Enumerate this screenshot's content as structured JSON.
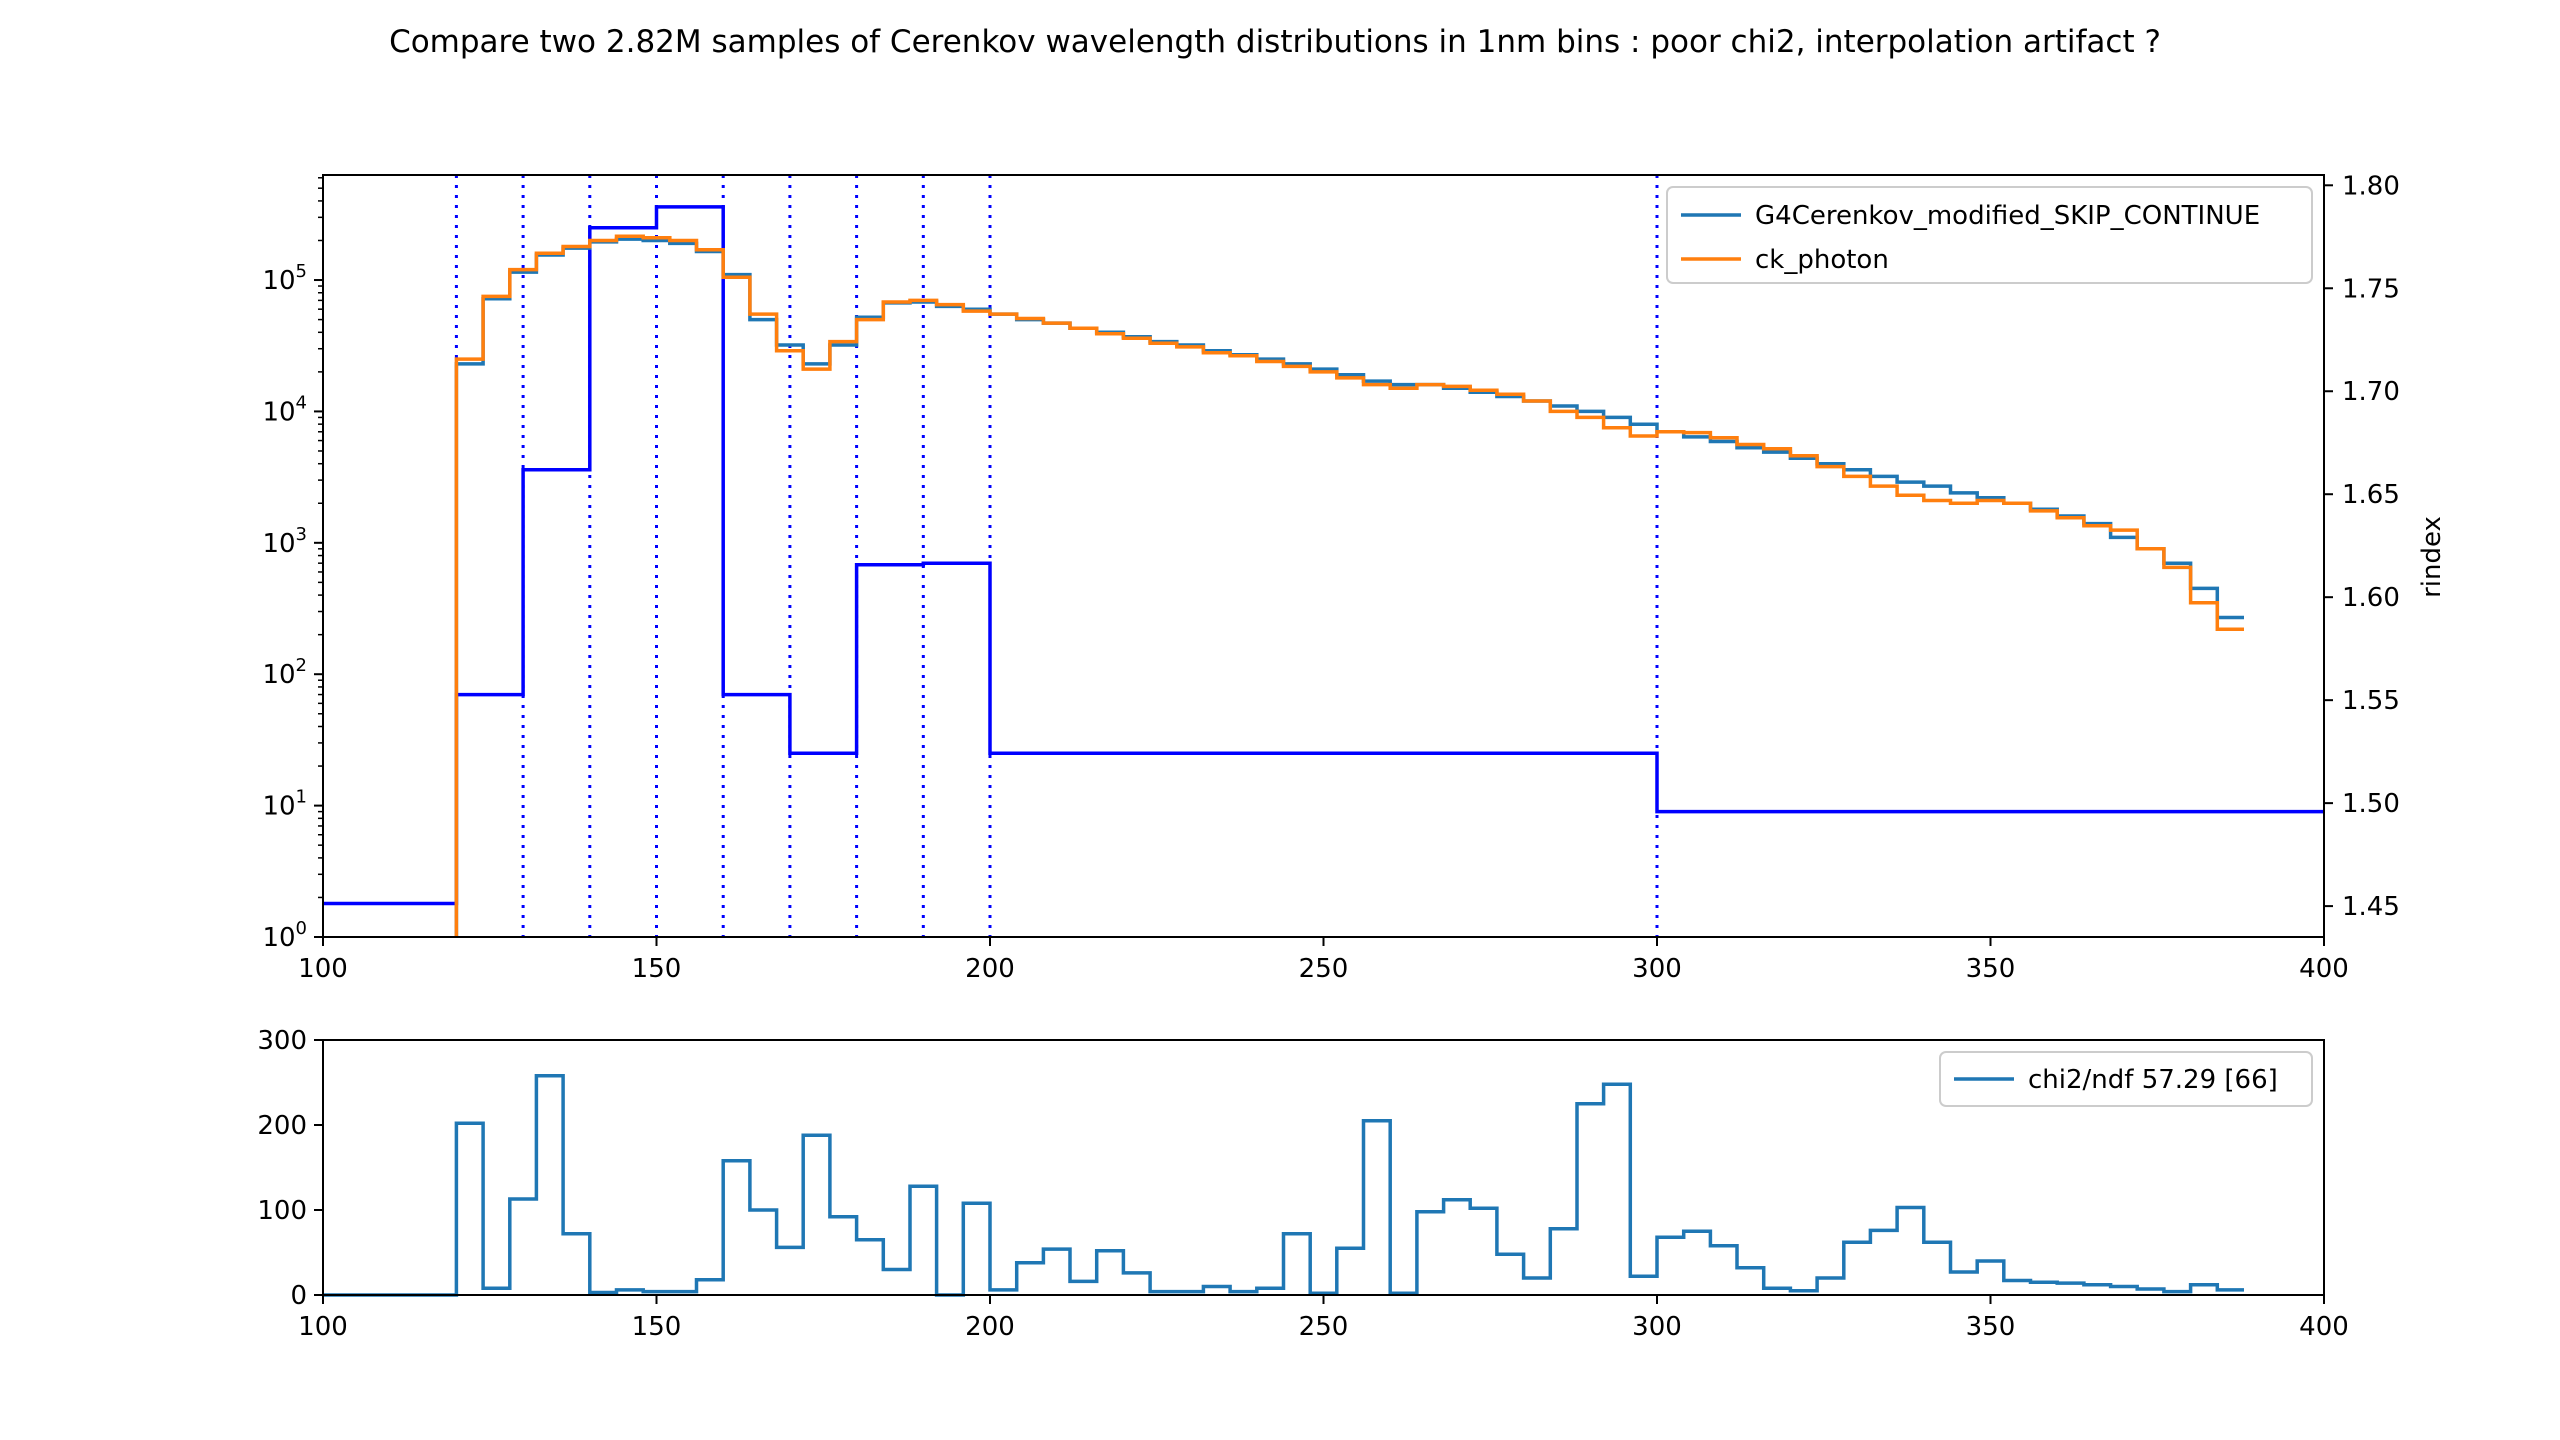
{
  "title": "Compare two 2.82M samples of Cerenkov wavelength distributions in 1nm bins : poor chi2, interpolation artifact ?",
  "colors": {
    "series_g4": "#1f77b4",
    "series_ck": "#ff7f0e",
    "rindex": "#0000ff",
    "axes": "#000000",
    "background": "#ffffff"
  },
  "chart_data": [
    {
      "id": "top",
      "type": "line",
      "step": true,
      "x_range": [
        100,
        400
      ],
      "y_scale": "log",
      "y_range": [
        1,
        630000
      ],
      "x_ticks": [
        100,
        150,
        200,
        250,
        300,
        350,
        400
      ],
      "y_ticks": [
        {
          "value": 1,
          "label_base": "10",
          "label_exp": "0"
        },
        {
          "value": 10,
          "label_base": "10",
          "label_exp": "1"
        },
        {
          "value": 100,
          "label_base": "10",
          "label_exp": "2"
        },
        {
          "value": 1000,
          "label_base": "10",
          "label_exp": "3"
        },
        {
          "value": 10000,
          "label_base": "10",
          "label_exp": "4"
        },
        {
          "value": 100000,
          "label_base": "10",
          "label_exp": "5"
        }
      ],
      "y2_label": "rindex",
      "y2_range": [
        1.435,
        1.805
      ],
      "y2_ticks": [
        "1.45",
        "1.50",
        "1.55",
        "1.60",
        "1.65",
        "1.70",
        "1.75",
        "1.80"
      ],
      "legend_position": "top-right",
      "legend": [
        "G4Cerenkov_modified_SKIP_CONTINUE",
        "ck_photon"
      ],
      "bin_edges": [
        120,
        124,
        128,
        132,
        136,
        140,
        144,
        148,
        152,
        156,
        160,
        164,
        168,
        172,
        176,
        180,
        184,
        188,
        192,
        196,
        200,
        204,
        208,
        212,
        216,
        220,
        224,
        228,
        232,
        236,
        240,
        244,
        248,
        252,
        256,
        260,
        264,
        268,
        272,
        276,
        280,
        284,
        288,
        292,
        296,
        300,
        304,
        308,
        312,
        316,
        320,
        324,
        328,
        332,
        336,
        340,
        344,
        348,
        352,
        356,
        360,
        364,
        368,
        372,
        376,
        380,
        384,
        388
      ],
      "series": [
        {
          "name": "G4Cerenkov_modified_SKIP_CONTINUE",
          "color": "#1f77b4",
          "values": [
            23000,
            72000,
            115000,
            155000,
            175000,
            195000,
            205000,
            200000,
            190000,
            165000,
            110000,
            50000,
            32000,
            23000,
            32000,
            52000,
            67000,
            68000,
            63000,
            60000,
            55000,
            50000,
            47000,
            43000,
            40000,
            37000,
            34000,
            32000,
            29000,
            27000,
            25000,
            23000,
            21000,
            19000,
            17000,
            16000,
            16000,
            15000,
            14000,
            13000,
            12000,
            11000,
            10000,
            9000,
            8000,
            7000,
            6400,
            5900,
            5300,
            4900,
            4400,
            4000,
            3600,
            3200,
            2900,
            2700,
            2400,
            2200,
            2000,
            1800,
            1600,
            1400,
            1100,
            900,
            700,
            450,
            270
          ]
        },
        {
          "name": "ck_photon",
          "color": "#ff7f0e",
          "values": [
            25000,
            75000,
            120000,
            160000,
            180000,
            200000,
            215000,
            210000,
            200000,
            170000,
            105000,
            55000,
            29000,
            21000,
            34000,
            50000,
            68000,
            70000,
            65000,
            58000,
            55000,
            51000,
            47000,
            43000,
            39000,
            36000,
            33000,
            31000,
            28000,
            26500,
            24000,
            22000,
            20000,
            18000,
            16000,
            15000,
            16000,
            15500,
            14500,
            13500,
            12000,
            10000,
            9000,
            7500,
            6500,
            7000,
            6900,
            6300,
            5600,
            5200,
            4600,
            3800,
            3200,
            2700,
            2300,
            2100,
            2000,
            2100,
            2000,
            1750,
            1550,
            1350,
            1250,
            900,
            650,
            350,
            220
          ]
        }
      ],
      "rindex": {
        "color": "#0000ff",
        "edges": [
          100,
          120,
          130,
          140,
          150,
          160,
          170,
          180,
          190,
          200,
          300,
          400
        ],
        "plotted_values": [
          1.8,
          70,
          3600,
          250000,
          360000,
          70,
          25,
          680,
          700,
          25,
          9
        ],
        "vlines": [
          120,
          130,
          140,
          150,
          160,
          170,
          180,
          190,
          200,
          300
        ]
      }
    },
    {
      "id": "bottom",
      "type": "line",
      "step": true,
      "x_range": [
        100,
        400
      ],
      "y_range": [
        0,
        300
      ],
      "x_ticks": [
        100,
        150,
        200,
        250,
        300,
        350,
        400
      ],
      "y_ticks": [
        0,
        100,
        200,
        300
      ],
      "legend_position": "top-right",
      "legend": [
        "chi2/ndf 57.29 [66]"
      ],
      "series": [
        {
          "name": "chi2/ndf 57.29 [66]",
          "color": "#1f77b4",
          "bin_edges": [
            100,
            120,
            124,
            128,
            132,
            136,
            140,
            144,
            148,
            152,
            156,
            160,
            164,
            168,
            172,
            176,
            180,
            184,
            188,
            192,
            196,
            200,
            204,
            208,
            212,
            216,
            220,
            224,
            228,
            232,
            236,
            240,
            244,
            248,
            252,
            256,
            260,
            264,
            268,
            272,
            276,
            280,
            284,
            288,
            292,
            296,
            300,
            304,
            308,
            312,
            316,
            320,
            324,
            328,
            332,
            336,
            340,
            344,
            348,
            352,
            356,
            360,
            364,
            368,
            372,
            376,
            380,
            384,
            388
          ],
          "values": [
            0,
            202,
            8,
            113,
            258,
            72,
            3,
            6,
            4,
            4,
            18,
            158,
            100,
            56,
            188,
            92,
            65,
            30,
            128,
            0,
            108,
            6,
            38,
            54,
            16,
            52,
            26,
            4,
            4,
            10,
            4,
            8,
            72,
            2,
            55,
            205,
            2,
            98,
            112,
            102,
            48,
            20,
            78,
            225,
            248,
            22,
            68,
            75,
            58,
            32,
            8,
            5,
            20,
            62,
            76,
            103,
            62,
            27,
            40,
            17,
            15,
            14,
            12,
            10,
            7,
            4,
            12,
            6
          ]
        }
      ]
    }
  ]
}
